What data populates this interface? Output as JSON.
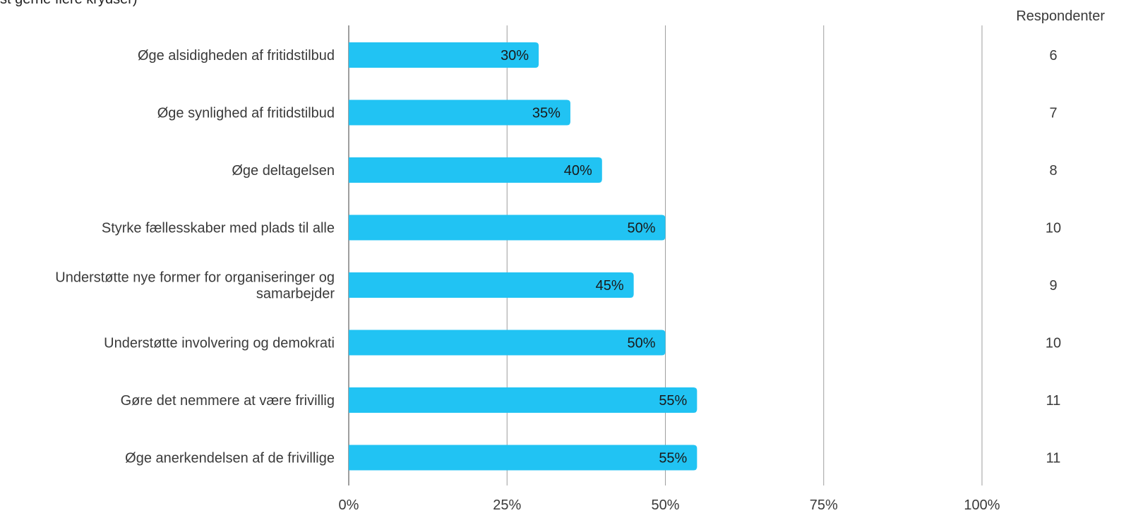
{
  "title_fragment": "st gerne flere krydser)",
  "chart_data": {
    "type": "bar",
    "orientation": "horizontal",
    "categories": [
      [
        "Øge alsidigheden af fritidstilbud"
      ],
      [
        "Øge synlighed af fritidstilbud"
      ],
      [
        "Øge deltagelsen"
      ],
      [
        "Styrke fællesskaber med plads til alle"
      ],
      [
        "Understøtte nye former for organiseringer og",
        "samarbejder"
      ],
      [
        "Understøtte involvering og demokrati"
      ],
      [
        "Gøre det nemmere at være frivillig"
      ],
      [
        "Øge anerkendelsen af de frivillige"
      ]
    ],
    "values": [
      30,
      35,
      40,
      50,
      45,
      50,
      55,
      55
    ],
    "value_labels": [
      "30%",
      "35%",
      "40%",
      "50%",
      "45%",
      "50%",
      "55%",
      "55%"
    ],
    "respondents": [
      "6",
      "7",
      "8",
      "10",
      "9",
      "10",
      "11",
      "11"
    ],
    "respondents_header": "Respondenter",
    "xlim": [
      0,
      100
    ],
    "xticks": [
      0,
      25,
      50,
      75,
      100
    ],
    "xtick_labels": [
      "0%",
      "25%",
      "50%",
      "75%",
      "100%"
    ],
    "grid": true,
    "bar_color": "#21c3f3",
    "grid_color": "#9e9e9e"
  }
}
